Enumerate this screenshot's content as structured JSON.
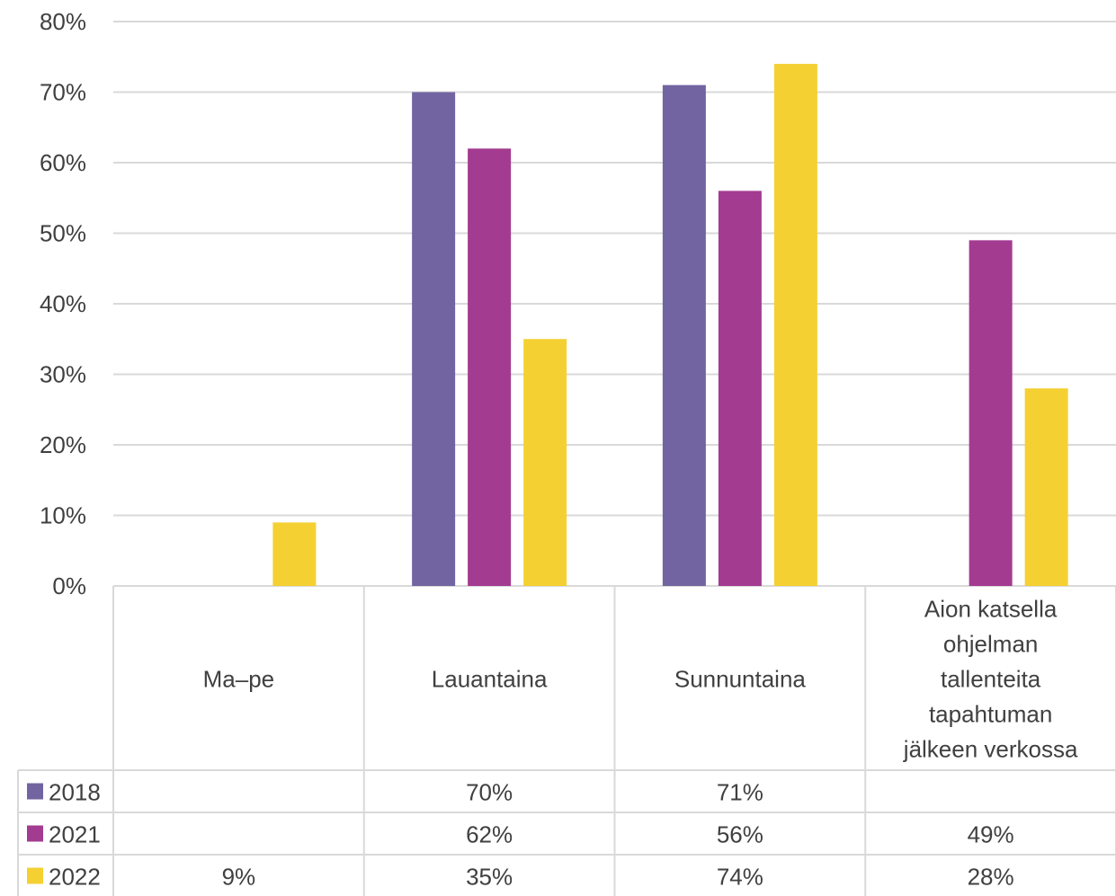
{
  "chart_data": {
    "type": "bar",
    "categories": [
      [
        "Ma–pe"
      ],
      [
        "Lauantaina"
      ],
      [
        "Sunnuntaina"
      ],
      [
        "Aion katsella",
        "ohjelman",
        "tallenteita",
        "tapahtuman",
        "jälkeen verkossa"
      ]
    ],
    "series": [
      {
        "name": "2018",
        "color": "#7264a0",
        "values": [
          null,
          70,
          71,
          null
        ],
        "labels": [
          "",
          "70%",
          "71%",
          ""
        ]
      },
      {
        "name": "2021",
        "color": "#a33b91",
        "values": [
          null,
          62,
          56,
          49
        ],
        "labels": [
          "",
          "62%",
          "56%",
          "49%"
        ]
      },
      {
        "name": "2022",
        "color": "#f5d033",
        "values": [
          9,
          35,
          74,
          28
        ],
        "labels": [
          "9%",
          "35%",
          "74%",
          "28%"
        ]
      }
    ],
    "ylim": [
      0,
      80
    ],
    "yticks": [
      "0%",
      "10%",
      "20%",
      "30%",
      "40%",
      "50%",
      "60%",
      "70%",
      "80%"
    ],
    "grid": true,
    "data_table": true
  }
}
